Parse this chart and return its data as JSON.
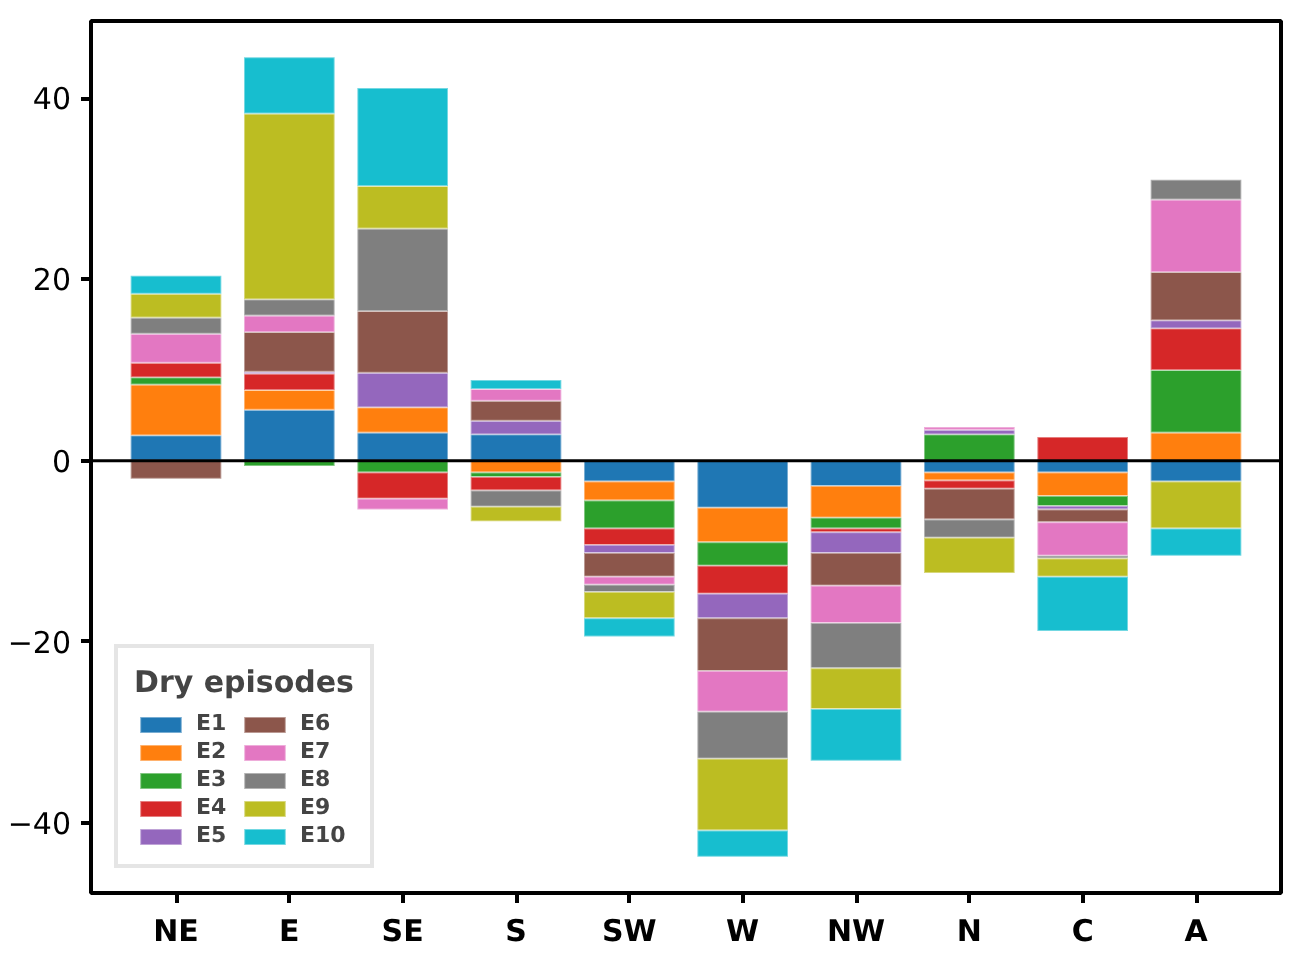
{
  "chart_data": {
    "type": "bar",
    "stacked": true,
    "legend_title": "Dry episodes",
    "legend": "bottom left",
    "grid": false,
    "categories": [
      "NE",
      "E",
      "SE",
      "S",
      "SW",
      "W",
      "NW",
      "N",
      "C",
      "A"
    ],
    "ylim": [
      -47.7,
      48.5
    ],
    "yticks": [
      -40,
      -20,
      0,
      20,
      40
    ],
    "ref_lines": [
      {
        "axis": "y",
        "value": 0,
        "color": "#000000"
      }
    ],
    "series": [
      {
        "name": "E1",
        "color": "#1f77b4",
        "values": [
          2.8,
          5.6,
          3.1,
          2.9,
          -2.3,
          -5.2,
          -2.8,
          -1.3,
          -1.3,
          -2.3
        ]
      },
      {
        "name": "E2",
        "color": "#ff7f0e",
        "values": [
          5.6,
          2.2,
          2.8,
          -1.3,
          -2.1,
          -3.8,
          -3.5,
          -0.9,
          -2.6,
          3.1
        ]
      },
      {
        "name": "E3",
        "color": "#2ca02c",
        "values": [
          0.8,
          -0.6,
          -1.3,
          -0.5,
          -3.1,
          -2.6,
          -1.2,
          2.9,
          -1.1,
          6.9
        ]
      },
      {
        "name": "E4",
        "color": "#d62728",
        "values": [
          1.6,
          1.8,
          -2.9,
          -1.5,
          -1.8,
          -3.1,
          -0.4,
          -0.9,
          2.6,
          4.6
        ]
      },
      {
        "name": "E5",
        "color": "#9467bd",
        "values": [
          null,
          0.2,
          3.8,
          1.5,
          -0.9,
          -2.7,
          -2.3,
          0.5,
          -0.4,
          0.9
        ]
      },
      {
        "name": "E6",
        "color": "#8c564b",
        "values": [
          -2.0,
          4.4,
          6.8,
          2.2,
          -2.6,
          -5.8,
          -3.6,
          -3.4,
          -1.4,
          5.3
        ]
      },
      {
        "name": "E7",
        "color": "#e377c2",
        "values": [
          3.2,
          1.8,
          -1.2,
          1.3,
          -0.9,
          -4.5,
          -4.1,
          0.3,
          -3.7,
          8.0
        ]
      },
      {
        "name": "E8",
        "color": "#7f7f7f",
        "values": [
          1.8,
          1.8,
          9.1,
          -1.8,
          -0.8,
          -5.2,
          -5.0,
          -2.0,
          -0.3,
          2.2
        ]
      },
      {
        "name": "E9",
        "color": "#bcbd22",
        "values": [
          2.6,
          20.5,
          4.7,
          -1.6,
          -2.9,
          -7.9,
          -4.5,
          -3.9,
          -2.0,
          -5.2
        ]
      },
      {
        "name": "E10",
        "color": "#17becf",
        "values": [
          2.0,
          6.2,
          10.8,
          1.0,
          -2.0,
          -2.9,
          -5.7,
          null,
          -6.0,
          -3.0
        ]
      }
    ]
  }
}
